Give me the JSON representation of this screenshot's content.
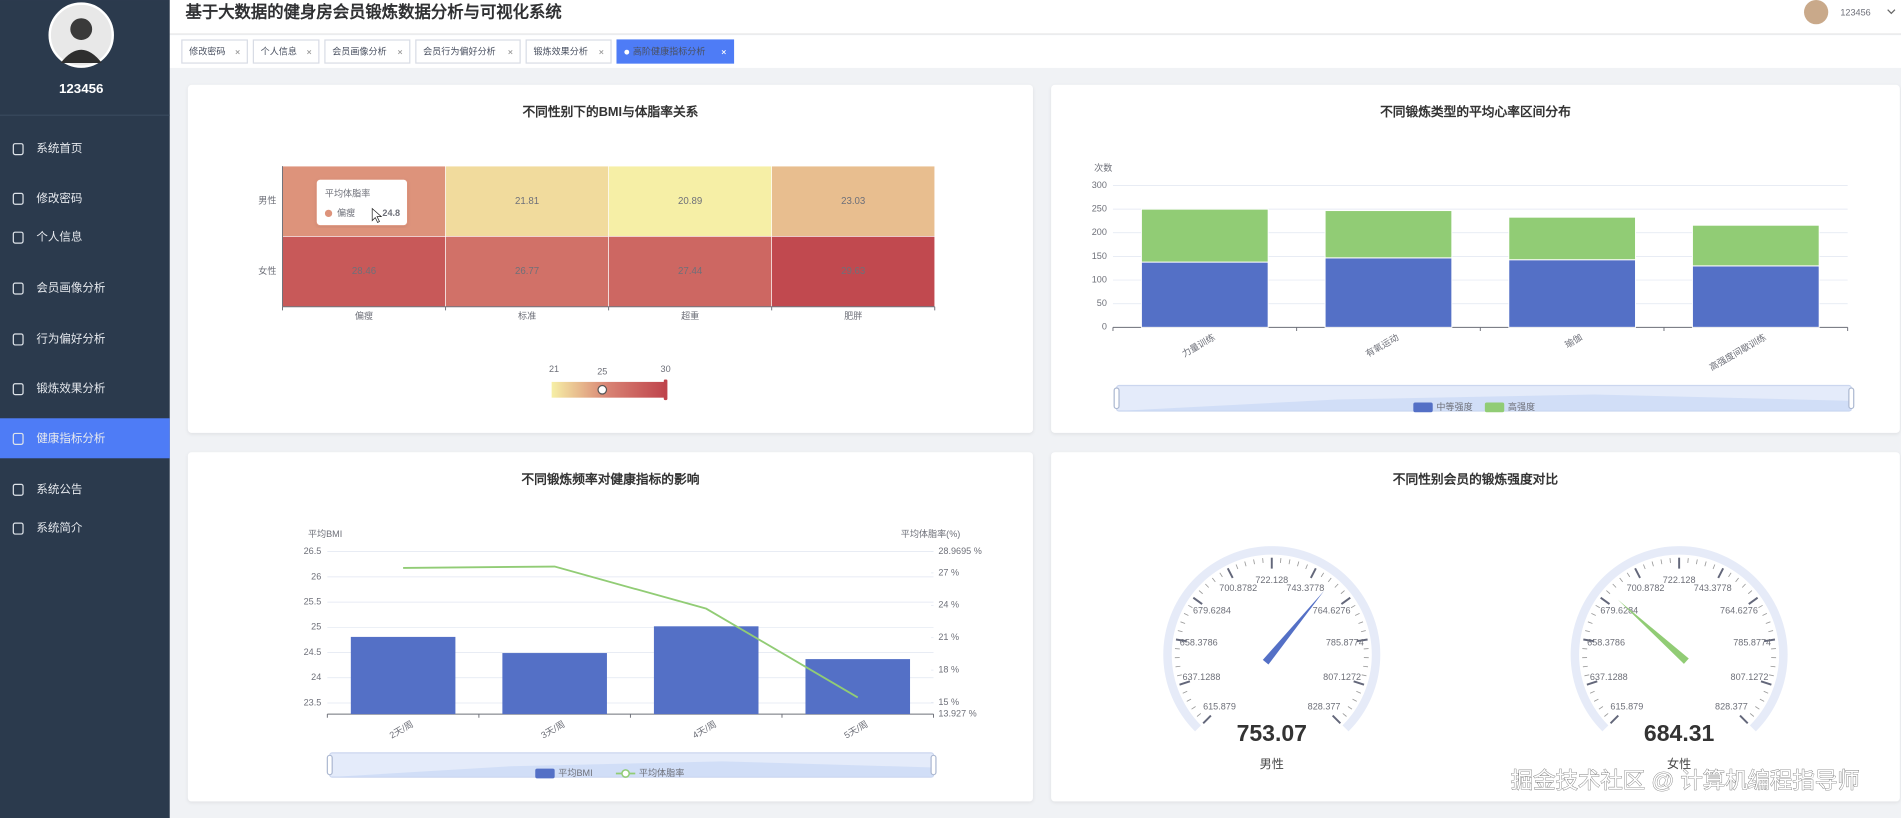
{
  "header": {
    "title": "基于大数据的健身房会员锻炼数据分析与可视化系统",
    "user": "123456"
  },
  "sidebar": {
    "user": "123456",
    "menu": [
      "系统首页",
      "修改密码",
      "个人信息",
      "会员画像分析",
      "行为偏好分析",
      "锻炼效果分析",
      "健康指标分析",
      "系统公告",
      "系统简介"
    ]
  },
  "tabs": [
    "修改密码",
    "个人信息",
    "会员画像分析",
    "会员行为偏好分析",
    "锻炼效果分析",
    "高阶健康指标分析"
  ],
  "chart_data": [
    {
      "type": "heatmap",
      "title": "不同性别下的BMI与体脂率关系",
      "x_categories": [
        "偏瘦",
        "标准",
        "超重",
        "肥胖"
      ],
      "y_categories": [
        "男性",
        "女性"
      ],
      "values": [
        [
          24.8,
          21.81,
          20.89,
          23.03
        ],
        [
          28.46,
          26.77,
          27.44,
          29.63
        ]
      ],
      "visual_map": {
        "range": [
          21,
          30
        ],
        "value": 25,
        "colors": [
          "#f6efa6",
          "#d88273",
          "#bf444c"
        ]
      },
      "tooltip": {
        "title": "平均体脂率"
      }
    },
    {
      "type": "bar",
      "stacked": true,
      "title": "不同锻炼类型的平均心率区间分布",
      "y_label": "次数",
      "categories": [
        "力量训练",
        "有氧运动",
        "瑜伽",
        "高强度间歇训练"
      ],
      "series": [
        {
          "name": "中等强度",
          "color": "#5470c6",
          "values": [
            138,
            147,
            143,
            130
          ]
        },
        {
          "name": "高强度",
          "color": "#91cc75",
          "values": [
            112,
            100,
            90,
            86
          ]
        }
      ],
      "ylim": [
        0,
        300
      ],
      "yticks": [
        0,
        50,
        100,
        150,
        200,
        250,
        300
      ],
      "grid": true,
      "legend": "bottom"
    },
    {
      "type": "combo",
      "title": "不同锻炼频率对健康指标的影响",
      "y_label": "平均BMI",
      "y2_label": "平均体脂率(%)",
      "categories": [
        "2天/周",
        "3天/周",
        "4天/周",
        "5天/周"
      ],
      "series": [
        {
          "name": "平均BMI",
          "type": "bar",
          "color": "#5470c6",
          "values": [
            24.81,
            24.49,
            25.02,
            24.37
          ]
        },
        {
          "name": "平均体脂率",
          "type": "line",
          "axis": "y2",
          "color": "#91cc75",
          "values": [
            27.46,
            27.59,
            23.69,
            15.47
          ]
        }
      ],
      "ylim": [
        23.28,
        26.5
      ],
      "yticks": [
        23.5,
        24,
        24.5,
        25,
        25.5,
        26,
        26.5
      ],
      "y2lim": [
        13.927,
        28.9695
      ],
      "y2ticks": [
        {
          "value": 13.927,
          "label": "13.927 %"
        },
        {
          "value": 15,
          "label": "15 %"
        },
        {
          "value": 18,
          "label": "18 %"
        },
        {
          "value": 21,
          "label": "21 %"
        },
        {
          "value": 24,
          "label": "24 %"
        },
        {
          "value": 27,
          "label": "27 %"
        },
        {
          "value": 28.9695,
          "label": "28.9695 %"
        }
      ],
      "grid": true,
      "legend": "bottom"
    },
    {
      "type": "gauge",
      "title": "不同性别会员的锻炼强度对比",
      "range": [
        615.879,
        828.377
      ],
      "ticks": [
        615.879,
        637.1288,
        658.3786,
        679.6284,
        700.8782,
        722.128,
        743.3778,
        764.6276,
        785.8774,
        807.1272,
        828.377
      ],
      "series": [
        {
          "name": "男性",
          "value": 753.07,
          "color": "#5470c6"
        },
        {
          "name": "女性",
          "value": 684.31,
          "color": "#91cc75"
        }
      ]
    }
  ],
  "watermark": "掘金技术社区 @ 计算机编程指导师"
}
